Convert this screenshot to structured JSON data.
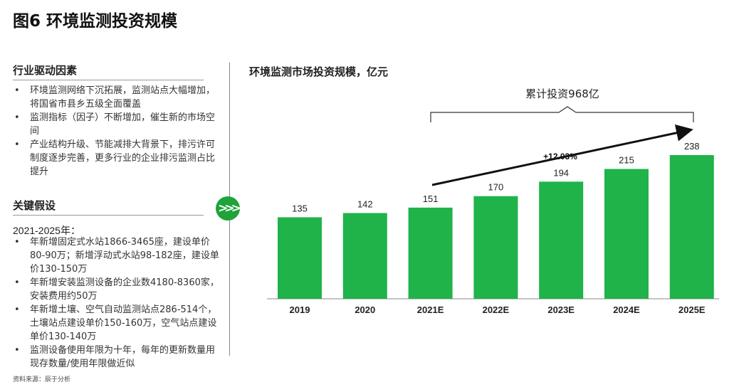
{
  "title": "图6  环境监测投资规模",
  "drivers": {
    "heading": "行业驱动因素",
    "items": [
      "环境监测网络下沉拓展，监测站点大幅增加，将国省市县乡五级全面覆盖",
      "监测指标（因子）不断增加，催生新的市场空间",
      "产业结构升级、节能减排大背景下，排污许可制度逐步完善，更多行业的企业排污监测占比提升"
    ]
  },
  "assumptions": {
    "heading": "关键假设",
    "period": "2021-2025年：",
    "items": [
      "年新增固定式水站1866-3465座，建设单价80-90万；新增浮动式水站98-182座，建设单价130-150万",
      "年新增安装监测设备的企业数4180-8360家，安装费用约50万",
      "年新增土壤、空气自动监测站点286-514个，土壤站点建设单价150-160万，空气站点建设单价130-140万",
      "监测设备使用年限为十年，每年的更新数量用现存数量/使用年限做近似"
    ]
  },
  "arrow_icon": "double-chevron-right-icon",
  "source": "资料来源：辰于分析",
  "colors": {
    "bar": "#1fb34a",
    "accent": "#1fa33a"
  },
  "chart_data": {
    "type": "bar",
    "title": "环境监测市场投资规模，亿元",
    "categories": [
      "2019",
      "2020",
      "2021E",
      "2022E",
      "2023E",
      "2024E",
      "2025E"
    ],
    "values": [
      135,
      142,
      151,
      170,
      194,
      215,
      238
    ],
    "ylim": [
      0,
      250
    ],
    "annotations": {
      "total": "累计投资968亿",
      "cagr": "+12.03%"
    }
  }
}
